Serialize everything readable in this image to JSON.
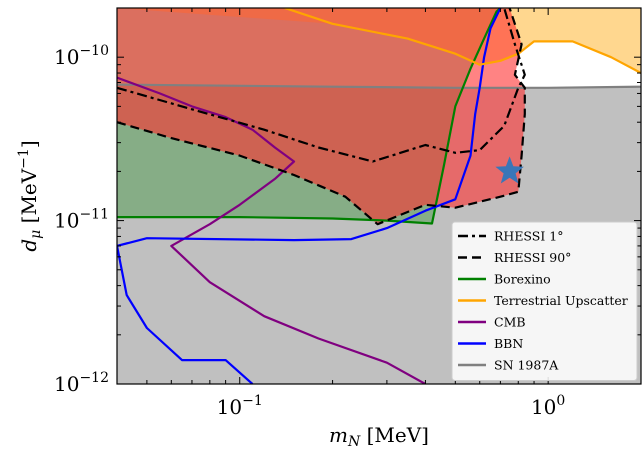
{
  "chart_data": {
    "type": "area",
    "xscale": "log",
    "yscale": "log",
    "xlim": [
      0.04,
      2.0
    ],
    "ylim": [
      1e-12,
      2e-10
    ],
    "x_ticks": [
      {
        "value": 0.1,
        "base": "10",
        "exp": "−1"
      },
      {
        "value": 1.0,
        "base": "10",
        "exp": "0"
      }
    ],
    "y_ticks": [
      {
        "value": 1e-12,
        "base": "10",
        "exp": "−12"
      },
      {
        "value": 1e-11,
        "base": "10",
        "exp": "−11"
      },
      {
        "value": 1e-10,
        "base": "10",
        "exp": "−10"
      }
    ],
    "xlabel": {
      "var": "m",
      "sub": "N",
      "unit": " [MeV]"
    },
    "ylabel": {
      "var": "d",
      "sub": "μ",
      "unit": " [MeV",
      "sup": "−1",
      "close": "]"
    },
    "grid": false,
    "legend_position": "lower-right",
    "legend": [
      {
        "label": "RHESSI 1°",
        "color": "#000000",
        "style": "dashdot"
      },
      {
        "label": "RHESSI 90°",
        "color": "#000000",
        "style": "dashed"
      },
      {
        "label": "Borexino",
        "color": "#008000",
        "style": "solid"
      },
      {
        "label": "Terrestrial Upscatter",
        "color": "#FFA500",
        "style": "solid"
      },
      {
        "label": "CMB",
        "color": "#800080",
        "style": "solid"
      },
      {
        "label": "BBN",
        "color": "#0000FF",
        "style": "solid"
      },
      {
        "label": "SN 1987A",
        "color": "#808080",
        "style": "solid"
      }
    ],
    "regions": [
      {
        "name": "SN 1987A",
        "color": "#808080",
        "fill": "#C0C0C0",
        "opacity": 1.0,
        "fill_to": "bottom",
        "boundary": [
          [
            0.04,
            6.8e-11
          ],
          [
            0.2,
            6.6e-11
          ],
          [
            0.5,
            6.5e-11
          ],
          [
            1.0,
            6.5e-11
          ],
          [
            2.0,
            6.6e-11
          ]
        ],
        "outline": [
          [
            0.04,
            6.8e-11
          ],
          [
            0.2,
            6.6e-11
          ],
          [
            0.5,
            6.5e-11
          ],
          [
            1.0,
            6.5e-11
          ],
          [
            2.0,
            6.6e-11
          ]
        ]
      },
      {
        "name": "Borexino",
        "color": "#008000",
        "fill": "#4C9A4C",
        "opacity": 0.5,
        "polygon": [
          [
            0.04,
            1.05e-11
          ],
          [
            0.1,
            1.05e-11
          ],
          [
            0.2,
            1.03e-11
          ],
          [
            0.3,
            1e-11
          ],
          [
            0.42,
            9.6e-12
          ],
          [
            0.46,
            2.2e-11
          ],
          [
            0.5,
            5e-11
          ],
          [
            0.56,
            8.5e-11
          ],
          [
            0.62,
            1.3e-10
          ],
          [
            0.68,
            1.9e-10
          ],
          [
            0.7,
            2e-10
          ],
          [
            0.04,
            2e-10
          ]
        ],
        "outline": [
          [
            0.04,
            1.05e-11
          ],
          [
            0.1,
            1.05e-11
          ],
          [
            0.2,
            1.03e-11
          ],
          [
            0.3,
            1e-11
          ],
          [
            0.42,
            9.6e-12
          ],
          [
            0.46,
            2.2e-11
          ],
          [
            0.5,
            5e-11
          ],
          [
            0.56,
            8.5e-11
          ],
          [
            0.62,
            1.3e-10
          ],
          [
            0.68,
            1.9e-10
          ],
          [
            0.7,
            2e-10
          ]
        ]
      },
      {
        "name": "CMB",
        "color": "#800080",
        "fill": null,
        "outline": [
          [
            0.04,
            7.5e-11
          ],
          [
            0.055,
            6e-11
          ],
          [
            0.07,
            5e-11
          ],
          [
            0.09,
            4.3e-11
          ],
          [
            0.11,
            3.6e-11
          ],
          [
            0.13,
            2.8e-11
          ],
          [
            0.15,
            2.3e-11
          ],
          [
            0.13,
            1.8e-11
          ],
          [
            0.1,
            1.25e-11
          ],
          [
            0.08,
            9.5e-12
          ],
          [
            0.06,
            7e-12
          ],
          [
            0.08,
            4.2e-12
          ],
          [
            0.12,
            2.6e-12
          ],
          [
            0.18,
            1.9e-12
          ],
          [
            0.3,
            1.35e-12
          ],
          [
            0.4,
            1e-12
          ]
        ]
      },
      {
        "name": "BBN",
        "color": "#0000FF",
        "fill": null,
        "outline": [
          [
            0.04,
            7e-12
          ],
          [
            0.043,
            3.5e-12
          ],
          [
            0.05,
            2.2e-12
          ],
          [
            0.065,
            1.4e-12
          ],
          [
            0.09,
            1.4e-12
          ],
          [
            0.11,
            1e-12
          ],
          [
            0.11,
            1e-12
          ]
        ],
        "outline2": [
          [
            0.04,
            7e-12
          ],
          [
            0.05,
            7.8e-12
          ],
          [
            0.15,
            7.6e-12
          ],
          [
            0.23,
            7.7e-12
          ],
          [
            0.3,
            9e-12
          ],
          [
            0.4,
            1.15e-11
          ],
          [
            0.5,
            1.35e-11
          ],
          [
            0.56,
            2.5e-11
          ],
          [
            0.58,
            4.5e-11
          ],
          [
            0.6,
            6.5e-11
          ],
          [
            0.62,
            1e-10
          ],
          [
            0.65,
            1.5e-10
          ],
          [
            0.7,
            2e-10
          ]
        ]
      },
      {
        "name": "Terrestrial Upscatter",
        "color": "#FFA500",
        "fill": "#FFB733",
        "opacity": 0.55,
        "polygon": [
          [
            0.04,
            2e-10
          ],
          [
            0.2,
            1.6e-10
          ],
          [
            0.35,
            1.3e-10
          ],
          [
            0.5,
            1.05e-10
          ],
          [
            0.6,
            9e-11
          ],
          [
            0.7,
            9.5e-11
          ],
          [
            0.8,
            1.05e-10
          ],
          [
            0.9,
            1.25e-10
          ],
          [
            1.2,
            1.25e-10
          ],
          [
            1.6,
            1e-10
          ],
          [
            2.0,
            8e-11
          ],
          [
            2.0,
            2e-10
          ]
        ],
        "outline": [
          [
            0.14,
            2e-10
          ],
          [
            0.2,
            1.6e-10
          ],
          [
            0.35,
            1.3e-10
          ],
          [
            0.5,
            1.05e-10
          ],
          [
            0.6,
            9e-11
          ],
          [
            0.7,
            9.5e-11
          ],
          [
            0.8,
            1.05e-10
          ],
          [
            0.9,
            1.25e-10
          ],
          [
            1.2,
            1.25e-10
          ],
          [
            1.6,
            1e-10
          ],
          [
            2.0,
            8e-11
          ]
        ]
      },
      {
        "name": "RHESSI 90°",
        "color": "#000000",
        "fill": "#FF3030",
        "opacity": 0.6,
        "polygon": [
          [
            0.04,
            4e-11
          ],
          [
            0.06,
            3.2e-11
          ],
          [
            0.1,
            2.5e-11
          ],
          [
            0.15,
            1.9e-11
          ],
          [
            0.22,
            1.4e-11
          ],
          [
            0.28,
            9.5e-12
          ],
          [
            0.4,
            1.25e-11
          ],
          [
            0.5,
            1.2e-11
          ],
          [
            0.7,
            1.4e-11
          ],
          [
            0.8,
            1.5e-11
          ],
          [
            0.82,
            2.5e-11
          ],
          [
            0.84,
            4.5e-11
          ],
          [
            0.84,
            6.5e-11
          ],
          [
            0.78,
            7.8e-11
          ],
          [
            0.82,
            1.2e-10
          ],
          [
            0.75,
            2e-10
          ],
          [
            0.04,
            2e-10
          ]
        ],
        "outline": [
          [
            0.04,
            4e-11
          ],
          [
            0.06,
            3.2e-11
          ],
          [
            0.1,
            2.5e-11
          ],
          [
            0.15,
            1.9e-11
          ],
          [
            0.22,
            1.4e-11
          ],
          [
            0.28,
            9.5e-12
          ],
          [
            0.4,
            1.25e-11
          ],
          [
            0.5,
            1.2e-11
          ],
          [
            0.7,
            1.4e-11
          ],
          [
            0.8,
            1.5e-11
          ],
          [
            0.82,
            2.5e-11
          ],
          [
            0.84,
            4.5e-11
          ],
          [
            0.84,
            6.5e-11
          ],
          [
            0.78,
            7.8e-11
          ],
          [
            0.82,
            1.2e-10
          ],
          [
            0.75,
            2e-10
          ]
        ]
      },
      {
        "name": "RHESSI 1°",
        "color": "#000000",
        "fill": null,
        "outline": [
          [
            0.04,
            6.5e-11
          ],
          [
            0.07,
            4.8e-11
          ],
          [
            0.12,
            3.6e-11
          ],
          [
            0.18,
            2.8e-11
          ],
          [
            0.27,
            2.3e-11
          ],
          [
            0.4,
            2.9e-11
          ],
          [
            0.5,
            2.6e-11
          ],
          [
            0.6,
            2.7e-11
          ],
          [
            0.72,
            3.8e-11
          ],
          [
            0.8,
            6.5e-11
          ],
          [
            0.84,
            7.8e-11
          ],
          [
            0.78,
            1.2e-10
          ],
          [
            0.72,
            2e-10
          ]
        ]
      }
    ],
    "markers": [
      {
        "shape": "star",
        "x": 0.75,
        "y": 2e-11,
        "color": "#3A76B8"
      }
    ]
  }
}
